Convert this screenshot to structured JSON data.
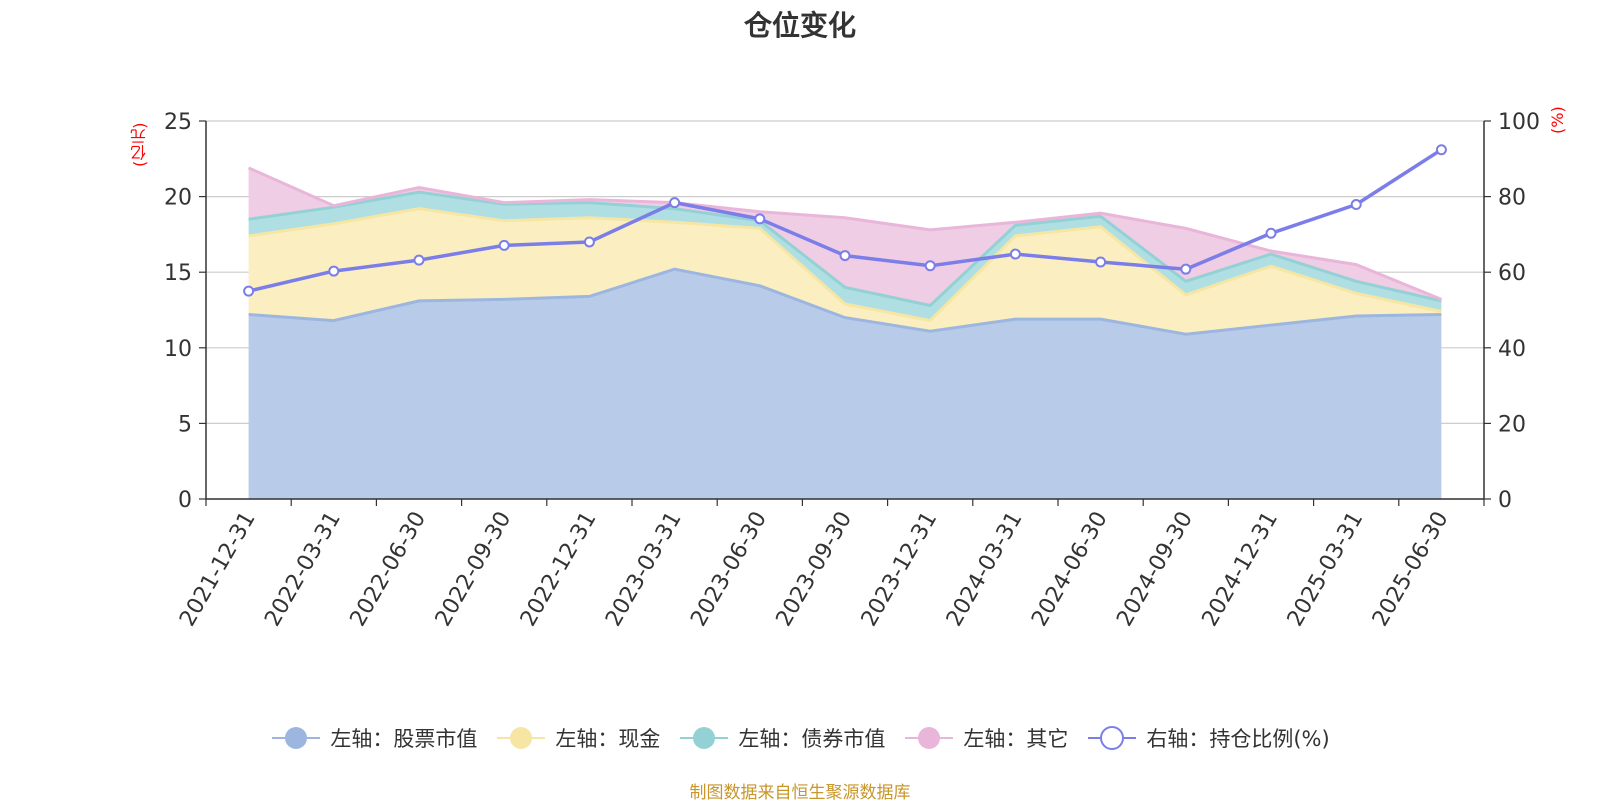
{
  "chart_data": {
    "type": "area",
    "title": "仓位变化",
    "left_axis_unit": "(亿元)",
    "right_axis_unit": "(%)",
    "categories": [
      "2021-12-31",
      "2022-03-31",
      "2022-06-30",
      "2022-09-30",
      "2022-12-31",
      "2023-03-31",
      "2023-06-30",
      "2023-09-30",
      "2023-12-31",
      "2024-03-31",
      "2024-06-30",
      "2024-09-30",
      "2024-12-31",
      "2025-03-31",
      "2025-06-30"
    ],
    "y_left": {
      "min": 0,
      "max": 25,
      "ticks": [
        "0",
        "5",
        "10",
        "15",
        "20",
        "25"
      ]
    },
    "y_right": {
      "min": 0,
      "max": 100,
      "ticks": [
        "0",
        "20",
        "40",
        "60",
        "80",
        "100"
      ]
    },
    "grid": true,
    "legend_position": "bottom",
    "series": [
      {
        "name": "左轴：股票市值",
        "axis": "left",
        "stack": true,
        "fill": "#b8cce9",
        "stroke": "#9db6e0",
        "values": [
          12.2,
          11.8,
          13.1,
          13.2,
          13.4,
          15.2,
          14.1,
          12.0,
          11.1,
          11.9,
          11.9,
          10.9,
          11.5,
          12.1,
          12.2
        ]
      },
      {
        "name": "左轴：现金",
        "axis": "left",
        "stack": true,
        "fill": "#fbefc1",
        "stroke": "#f7e6a3",
        "values": [
          5.2,
          6.4,
          6.1,
          5.2,
          5.2,
          3.1,
          3.8,
          0.9,
          0.7,
          5.5,
          6.1,
          2.6,
          3.9,
          1.5,
          0.2
        ]
      },
      {
        "name": "左轴：债券市值",
        "axis": "left",
        "stack": true,
        "fill": "#b0dfe3",
        "stroke": "#93d1d5",
        "values": [
          1.1,
          1.1,
          1.1,
          1.1,
          1.0,
          0.9,
          0.5,
          1.1,
          1.0,
          0.7,
          0.7,
          0.9,
          0.8,
          0.8,
          0.7
        ]
      },
      {
        "name": "左轴：其它",
        "axis": "left",
        "stack": true,
        "fill": "#efcde5",
        "stroke": "#e9b6da",
        "values": [
          3.4,
          0.1,
          0.3,
          0.1,
          0.2,
          0.4,
          0.6,
          4.6,
          5.0,
          0.2,
          0.2,
          3.5,
          0.2,
          1.1,
          0.1
        ]
      },
      {
        "name": "右轴：持仓比例(%)",
        "axis": "right",
        "type": "line",
        "stroke": "#7b7de8",
        "values": [
          55.0,
          60.3,
          63.2,
          67.1,
          68.0,
          78.4,
          74.1,
          64.4,
          61.7,
          64.8,
          62.7,
          60.8,
          70.3,
          77.9,
          92.4
        ]
      }
    ],
    "source_note": "制图数据来自恒生聚源数据库"
  }
}
